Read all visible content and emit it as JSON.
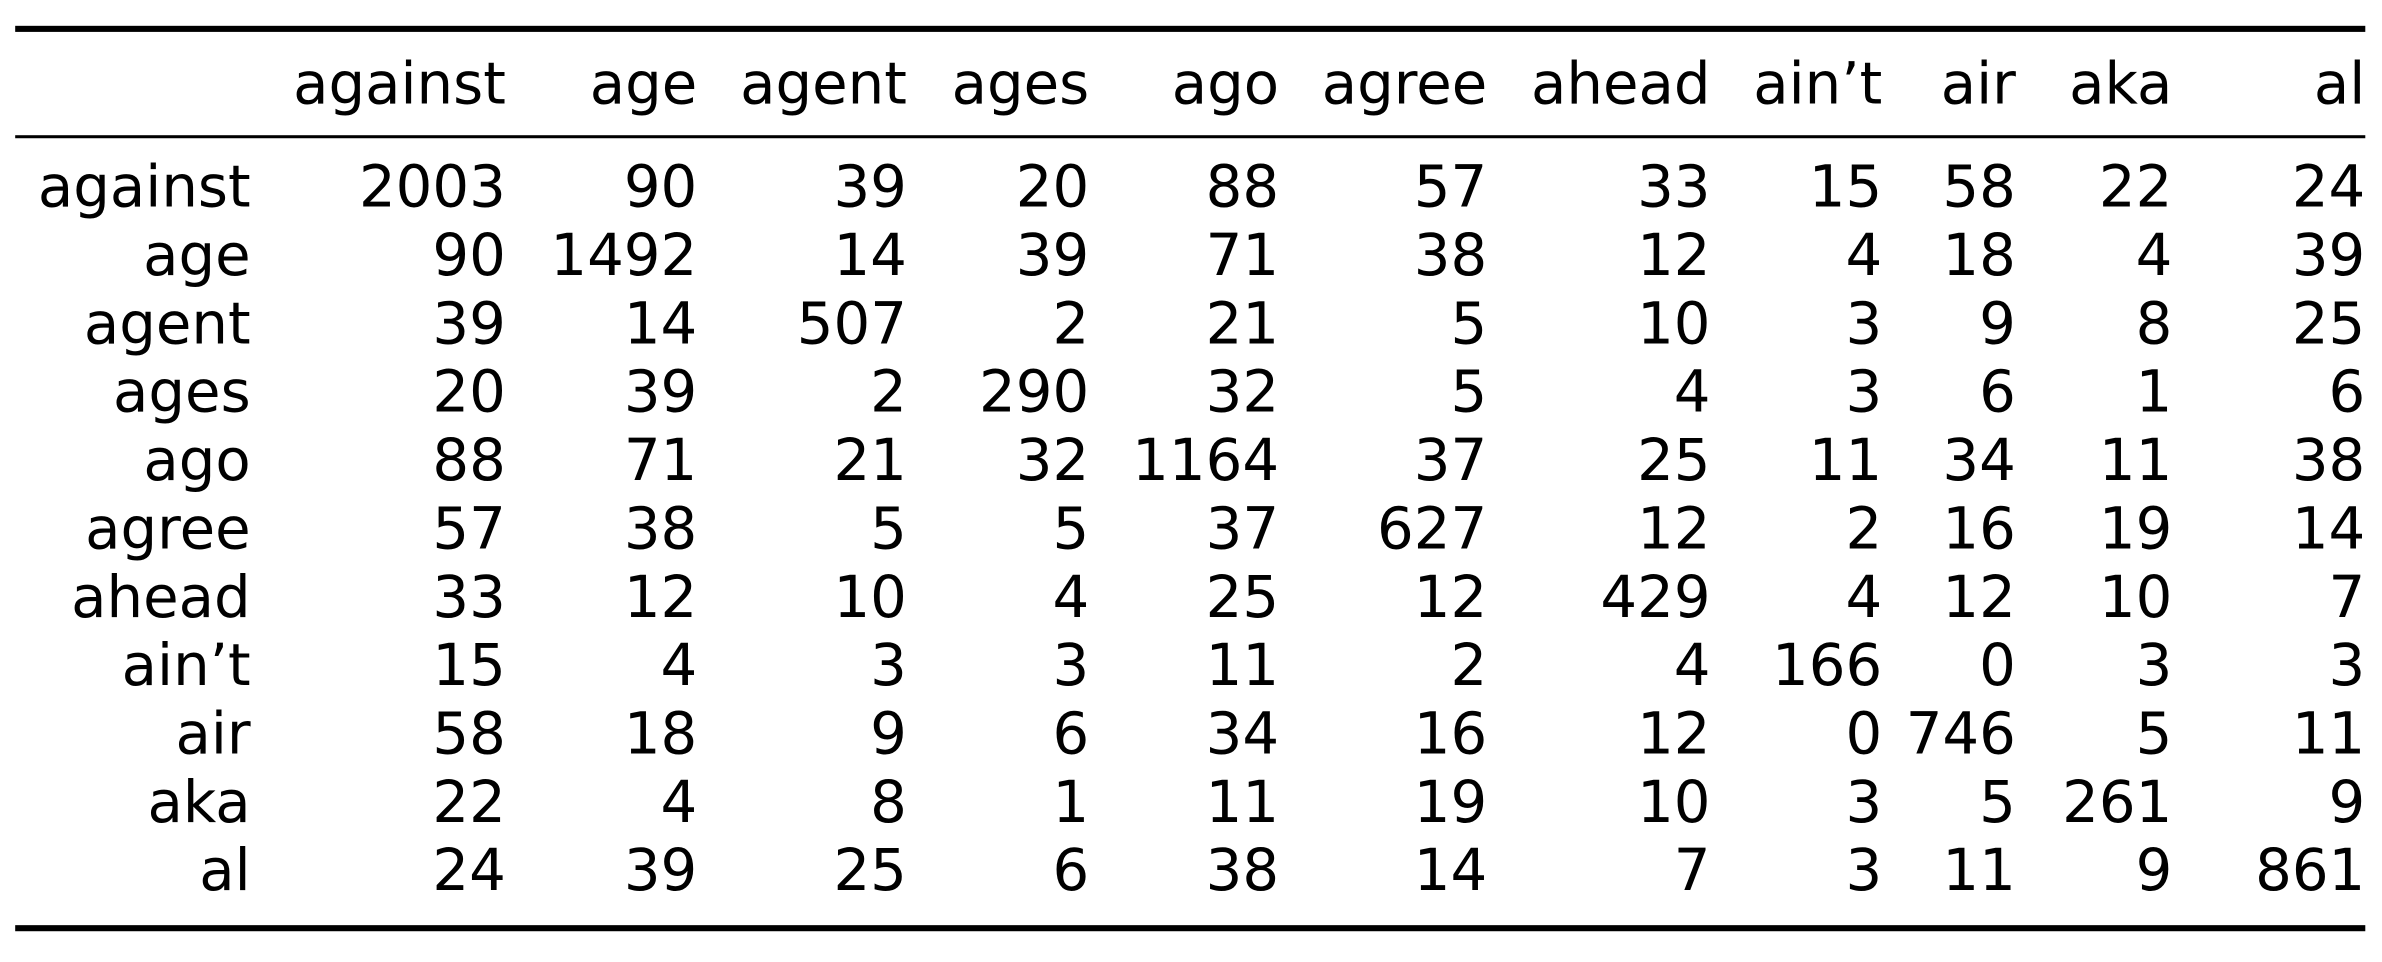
{
  "table": {
    "columns": [
      "against",
      "age",
      "agent",
      "ages",
      "ago",
      "agree",
      "ahead",
      "ain’t",
      "air",
      "aka",
      "al"
    ],
    "rows": [
      {
        "label": "against",
        "values": [
          "2003",
          "90",
          "39",
          "20",
          "88",
          "57",
          "33",
          "15",
          "58",
          "22",
          "24"
        ]
      },
      {
        "label": "age",
        "values": [
          "90",
          "1492",
          "14",
          "39",
          "71",
          "38",
          "12",
          "4",
          "18",
          "4",
          "39"
        ]
      },
      {
        "label": "agent",
        "values": [
          "39",
          "14",
          "507",
          "2",
          "21",
          "5",
          "10",
          "3",
          "9",
          "8",
          "25"
        ]
      },
      {
        "label": "ages",
        "values": [
          "20",
          "39",
          "2",
          "290",
          "32",
          "5",
          "4",
          "3",
          "6",
          "1",
          "6"
        ]
      },
      {
        "label": "ago",
        "values": [
          "88",
          "71",
          "21",
          "32",
          "1164",
          "37",
          "25",
          "11",
          "34",
          "11",
          "38"
        ]
      },
      {
        "label": "agree",
        "values": [
          "57",
          "38",
          "5",
          "5",
          "37",
          "627",
          "12",
          "2",
          "16",
          "19",
          "14"
        ]
      },
      {
        "label": "ahead",
        "values": [
          "33",
          "12",
          "10",
          "4",
          "25",
          "12",
          "429",
          "4",
          "12",
          "10",
          "7"
        ]
      },
      {
        "label": "ain’t",
        "values": [
          "15",
          "4",
          "3",
          "3",
          "11",
          "2",
          "4",
          "166",
          "0",
          "3",
          "3"
        ]
      },
      {
        "label": "air",
        "values": [
          "58",
          "18",
          "9",
          "6",
          "34",
          "16",
          "12",
          "0",
          "746",
          "5",
          "11"
        ]
      },
      {
        "label": "aka",
        "values": [
          "22",
          "4",
          "8",
          "1",
          "11",
          "19",
          "10",
          "3",
          "5",
          "261",
          "9"
        ]
      },
      {
        "label": "al",
        "values": [
          "24",
          "39",
          "25",
          "6",
          "38",
          "14",
          "7",
          "3",
          "11",
          "9",
          "861"
        ]
      }
    ]
  }
}
